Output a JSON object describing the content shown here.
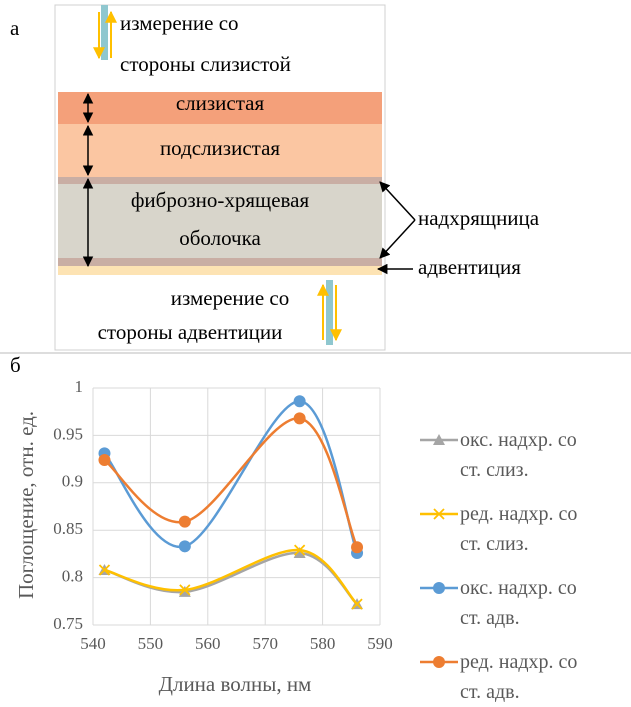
{
  "diagram": {
    "label": "а",
    "top_note": [
      "измерение со",
      "стороны слизистой"
    ],
    "layers": {
      "mucosa": "слизистая",
      "submucosa": "подслизистая",
      "fibro": [
        "фиброзно-хрящевая",
        "оболочка"
      ]
    },
    "perichondrium": "надхрящница",
    "adventitia": "адвентиция",
    "bottom_note": [
      "измерение со",
      "стороны адвентиции"
    ]
  },
  "chart_data": {
    "type": "line",
    "panel_label": "б",
    "x_label": "Длина волны, нм",
    "y_label": "Поглощение, отн. ед.",
    "x": [
      542,
      556,
      576,
      586
    ],
    "xlim": [
      540,
      590
    ],
    "xticks": [
      540,
      550,
      560,
      570,
      580,
      590
    ],
    "ylim": [
      0.75,
      1
    ],
    "yticks": [
      0.75,
      0.8,
      0.85,
      0.9,
      0.95,
      1
    ],
    "grid": true,
    "legend": "right",
    "smooth": true,
    "series": [
      {
        "name": "окс. надхр. со ст. слиз.",
        "color": "#a5a5a5",
        "marker": "triangle",
        "values": [
          0.808,
          0.785,
          0.826,
          0.772
        ]
      },
      {
        "name": "ред. надхр. со ст. слиз.",
        "color": "#ffc000",
        "marker": "x",
        "values": [
          0.808,
          0.787,
          0.829,
          0.772
        ]
      },
      {
        "name": "окс. надхр. со ст. адв.",
        "color": "#5b9bd5",
        "marker": "circle",
        "values": [
          0.931,
          0.833,
          0.986,
          0.826
        ]
      },
      {
        "name": "ред. надхр. со ст. адв.",
        "color": "#ed7d31",
        "marker": "circle",
        "values": [
          0.924,
          0.859,
          0.968,
          0.832
        ]
      }
    ]
  }
}
